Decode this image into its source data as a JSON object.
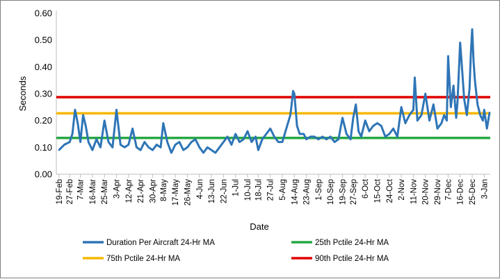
{
  "chart_data": {
    "type": "line",
    "title": "",
    "xlabel": "Date",
    "ylabel": "Seconds",
    "ylim": [
      0,
      0.6
    ],
    "y_ticks": [
      "0.00",
      "0.10",
      "0.20",
      "0.30",
      "0.40",
      "0.50",
      "0.60"
    ],
    "y_tick_values": [
      0,
      0.1,
      0.2,
      0.3,
      0.4,
      0.5,
      0.6
    ],
    "grid": false,
    "legend_position": "bottom",
    "x_ticks": [
      "19-Feb",
      "27-Feb",
      "7-Mar",
      "16-Mar",
      "25-Mar",
      "3-Apr",
      "12-Apr",
      "21-Apr",
      "30-Apr",
      "8-May",
      "17-May",
      "26-May",
      "4-Jun",
      "13-Jun",
      "22-Jun",
      "1-Jul",
      "10-Jul",
      "18-Jul",
      "27-Jul",
      "5-Aug",
      "14-Aug",
      "23-Aug",
      "1-Sep",
      "10-Sep",
      "19-Sep",
      "27-Sep",
      "6-Oct",
      "15-Oct",
      "24-Oct",
      "2-Nov",
      "11-Nov",
      "20-Nov",
      "29-Nov",
      "7-Dec",
      "16-Dec",
      "25-Dec",
      "3-Jan"
    ],
    "series": [
      {
        "name": "Duration Per Aircraft 24-Hr MA",
        "color": "#2e75b6",
        "kind": "line",
        "x": [
          "19-Feb",
          "23-Feb",
          "27-Feb",
          "1-Mar",
          "3-Mar",
          "5-Mar",
          "7-Mar",
          "9-Mar",
          "11-Mar",
          "13-Mar",
          "16-Mar",
          "19-Mar",
          "22-Mar",
          "25-Mar",
          "28-Mar",
          "31-Mar",
          "3-Apr",
          "6-Apr",
          "9-Apr",
          "12-Apr",
          "15-Apr",
          "18-Apr",
          "21-Apr",
          "24-Apr",
          "27-Apr",
          "30-Apr",
          "3-May",
          "6-May",
          "8-May",
          "11-May",
          "14-May",
          "17-May",
          "20-May",
          "23-May",
          "26-May",
          "29-May",
          "1-Jun",
          "4-Jun",
          "7-Jun",
          "10-Jun",
          "13-Jun",
          "16-Jun",
          "19-Jun",
          "22-Jun",
          "25-Jun",
          "28-Jun",
          "1-Jul",
          "4-Jul",
          "7-Jul",
          "10-Jul",
          "13-Jul",
          "16-Jul",
          "18-Jul",
          "21-Jul",
          "24-Jul",
          "27-Jul",
          "30-Jul",
          "2-Aug",
          "5-Aug",
          "8-Aug",
          "11-Aug",
          "12-Aug",
          "13-Aug",
          "14-Aug",
          "16-Aug",
          "18-Aug",
          "21-Aug",
          "23-Aug",
          "26-Aug",
          "29-Aug",
          "1-Sep",
          "4-Sep",
          "7-Sep",
          "10-Sep",
          "13-Sep",
          "16-Sep",
          "19-Sep",
          "22-Sep",
          "25-Sep",
          "27-Sep",
          "29-Sep",
          "1-Oct",
          "3-Oct",
          "6-Oct",
          "9-Oct",
          "12-Oct",
          "15-Oct",
          "18-Oct",
          "21-Oct",
          "24-Oct",
          "27-Oct",
          "30-Oct",
          "2-Nov",
          "5-Nov",
          "8-Nov",
          "11-Nov",
          "12-Nov",
          "14-Nov",
          "17-Nov",
          "20-Nov",
          "23-Nov",
          "26-Nov",
          "29-Nov",
          "2-Dec",
          "4-Dec",
          "6-Dec",
          "7-Dec",
          "9-Dec",
          "11-Dec",
          "13-Dec",
          "14-Dec",
          "16-Dec",
          "17-Dec",
          "19-Dec",
          "21-Dec",
          "23-Dec",
          "24-Dec",
          "25-Dec",
          "26-Dec",
          "27-Dec",
          "29-Dec",
          "31-Dec",
          "2-Jan",
          "3-Jan",
          "5-Jan",
          "7-Jan"
        ],
        "values": [
          0.09,
          0.11,
          0.12,
          0.15,
          0.24,
          0.19,
          0.12,
          0.22,
          0.18,
          0.12,
          0.09,
          0.13,
          0.1,
          0.2,
          0.12,
          0.1,
          0.24,
          0.11,
          0.1,
          0.11,
          0.17,
          0.1,
          0.09,
          0.12,
          0.1,
          0.09,
          0.11,
          0.1,
          0.19,
          0.12,
          0.08,
          0.11,
          0.12,
          0.09,
          0.1,
          0.12,
          0.13,
          0.1,
          0.08,
          0.1,
          0.09,
          0.08,
          0.1,
          0.12,
          0.14,
          0.11,
          0.15,
          0.12,
          0.13,
          0.16,
          0.12,
          0.14,
          0.09,
          0.13,
          0.15,
          0.17,
          0.14,
          0.12,
          0.12,
          0.17,
          0.22,
          0.26,
          0.31,
          0.3,
          0.18,
          0.15,
          0.15,
          0.13,
          0.14,
          0.14,
          0.13,
          0.14,
          0.13,
          0.14,
          0.12,
          0.13,
          0.21,
          0.15,
          0.13,
          0.21,
          0.26,
          0.16,
          0.14,
          0.2,
          0.16,
          0.18,
          0.19,
          0.18,
          0.14,
          0.15,
          0.17,
          0.14,
          0.25,
          0.19,
          0.22,
          0.24,
          0.36,
          0.2,
          0.22,
          0.3,
          0.2,
          0.26,
          0.17,
          0.19,
          0.22,
          0.2,
          0.44,
          0.25,
          0.33,
          0.21,
          0.27,
          0.49,
          0.42,
          0.28,
          0.22,
          0.32,
          0.45,
          0.54,
          0.42,
          0.35,
          0.26,
          0.22,
          0.2,
          0.24,
          0.17,
          0.23
        ]
      },
      {
        "name": "25th Pctile 24-Hr MA",
        "color": "#27a844",
        "kind": "hline",
        "value": 0.135
      },
      {
        "name": "75th Pctile 24-Hr MA",
        "color": "#f5b800",
        "kind": "hline",
        "value": 0.227
      },
      {
        "name": "90th Pctile 24-Hr MA",
        "color": "#e00000",
        "kind": "hline",
        "value": 0.287
      }
    ]
  }
}
